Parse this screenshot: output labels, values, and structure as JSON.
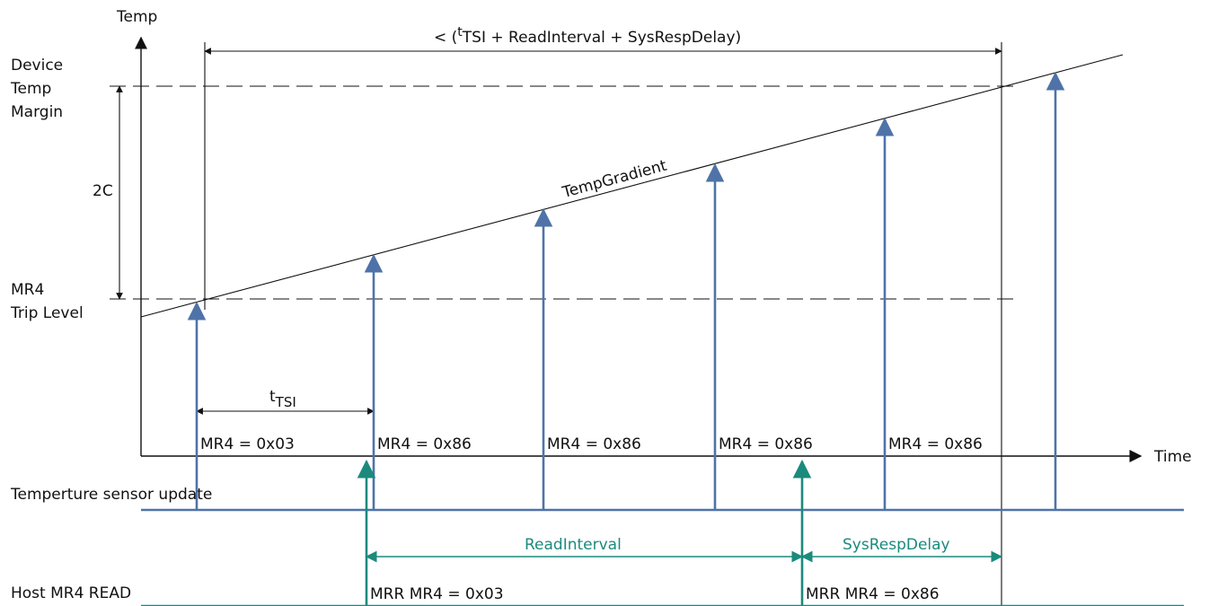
{
  "axes": {
    "y_label": "Temp",
    "x_label": "Time"
  },
  "levels": {
    "device_margin": [
      "Device",
      "Temp",
      "Margin"
    ],
    "trip": [
      "MR4",
      "Trip Level"
    ],
    "delta": "2C"
  },
  "top_interval": {
    "prefix": "< (",
    "t_sup": "t",
    "t_sub": "TSI",
    "suffix": " + ReadInterval + SysRespDelay)"
  },
  "gradient_label": "TempGradient",
  "tsi_label": {
    "base": "t",
    "sub": "TSI"
  },
  "mr4_values": [
    "MR4 = 0x03",
    "MR4 = 0x86",
    "MR4 = 0x86",
    "MR4 = 0x86",
    "MR4 = 0x86"
  ],
  "rows": {
    "sensor_update": "Temperture sensor update",
    "host_read": "Host MR4 READ"
  },
  "host_reads": [
    "MRR MR4 = 0x03",
    "MRR MR4 = 0x86"
  ],
  "intervals": {
    "read_interval": "ReadInterval",
    "sys_resp_delay": "SysRespDelay"
  },
  "colors": {
    "blue": "#4f73a8",
    "teal": "#1b8a7d",
    "black": "#111111"
  }
}
